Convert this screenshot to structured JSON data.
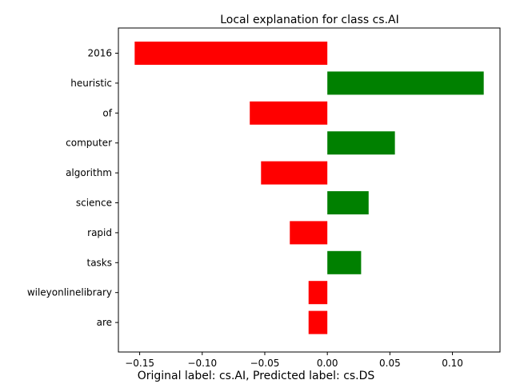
{
  "chart_data": {
    "type": "bar",
    "orientation": "horizontal",
    "title": "Local explanation for class cs.AI",
    "xlabel": "",
    "ylabel": "",
    "categories": [
      "2016",
      "heuristic",
      "of",
      "computer",
      "algorithm",
      "science",
      "rapid",
      "tasks",
      "wileyonlinelibrary",
      "are"
    ],
    "values": [
      -0.154,
      0.125,
      -0.062,
      0.054,
      -0.053,
      0.033,
      -0.03,
      0.027,
      -0.015,
      -0.015
    ],
    "xlim": [
      -0.167,
      0.138
    ],
    "xticks": [
      -0.15,
      -0.1,
      -0.05,
      0.0,
      0.05,
      0.1
    ],
    "xtick_labels": [
      "−0.15",
      "−0.10",
      "−0.05",
      "0.00",
      "0.05",
      "0.10"
    ],
    "grid": false,
    "colors": {
      "positive": "#008000",
      "negative": "#ff0000",
      "axis": "#000000"
    }
  },
  "caption": "Original label: cs.AI, Predicted label: cs.DS"
}
